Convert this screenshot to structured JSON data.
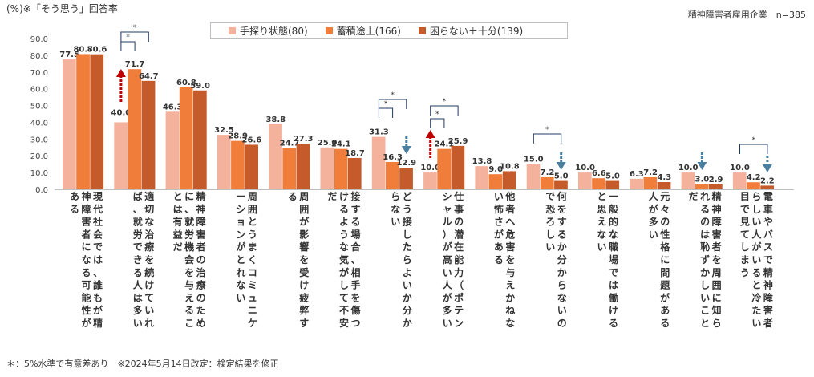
{
  "title": "(%)※「そう思う」回答率",
  "subtitle": "精神障害者雇用企業　n=385",
  "footnote": "＊：5%水準で有意差あり　※2024年5月14日改定：検定結果を修正",
  "colors": {
    "s1": "#F4B19C",
    "s2": "#F07D3A",
    "s3": "#C55A2B",
    "sig": "#1F3864",
    "up": "#C00000",
    "down": "#4A7FA0"
  },
  "chart_data": {
    "type": "bar",
    "ylim": [
      0,
      90
    ],
    "yticks": [
      "0.0",
      "10.0",
      "20.0",
      "30.0",
      "40.0",
      "50.0",
      "60.0",
      "70.0",
      "80.0",
      "90.0"
    ],
    "series": [
      {
        "name": "手探り状態(80)",
        "values": [
          77.5,
          40.0,
          46.3,
          32.5,
          38.8,
          25.0,
          31.3,
          10.0,
          13.8,
          15.0,
          10.0,
          6.3,
          10.0,
          10.0
        ]
      },
      {
        "name": "蓄積途上(166)",
        "values": [
          80.7,
          71.7,
          60.8,
          28.9,
          24.7,
          24.1,
          16.3,
          24.1,
          9.0,
          7.2,
          6.6,
          7.2,
          3.0,
          4.2
        ]
      },
      {
        "name": "困らない＋十分(139)",
        "values": [
          80.6,
          64.7,
          59.0,
          26.6,
          27.3,
          18.7,
          12.9,
          25.9,
          10.8,
          5.0,
          5.0,
          4.3,
          2.9,
          2.2
        ]
      }
    ],
    "categories": [
      "現代社会では、誰もが精神障害者になる可能性がある",
      "適切な治療を続けていれば、就労できる人は多い",
      "精神障害者の治療のために、就労機会を与えることは有益だ",
      "周囲とうまくコミュニケーションがとれない",
      "周囲が影響を受け疲弊する",
      "接する場合、相手を傷つけるような気がして不安だ",
      "どう接したらよいか分からない",
      "仕事の潜在能力（ポテンシャル）が高い人が多い",
      "他者へ危害を与えかねない怖さがある",
      "何をするか分からないので恐ろしい",
      "一般的な職場では働けると思えない",
      "元々の性格に問題がある人が多い",
      "精神障害者を周囲に知られるのは恥ずかしいことだ",
      "電車やバスで精神障害者らしい人がいると冷たい目で見てしまう"
    ],
    "significance_label": "*"
  }
}
